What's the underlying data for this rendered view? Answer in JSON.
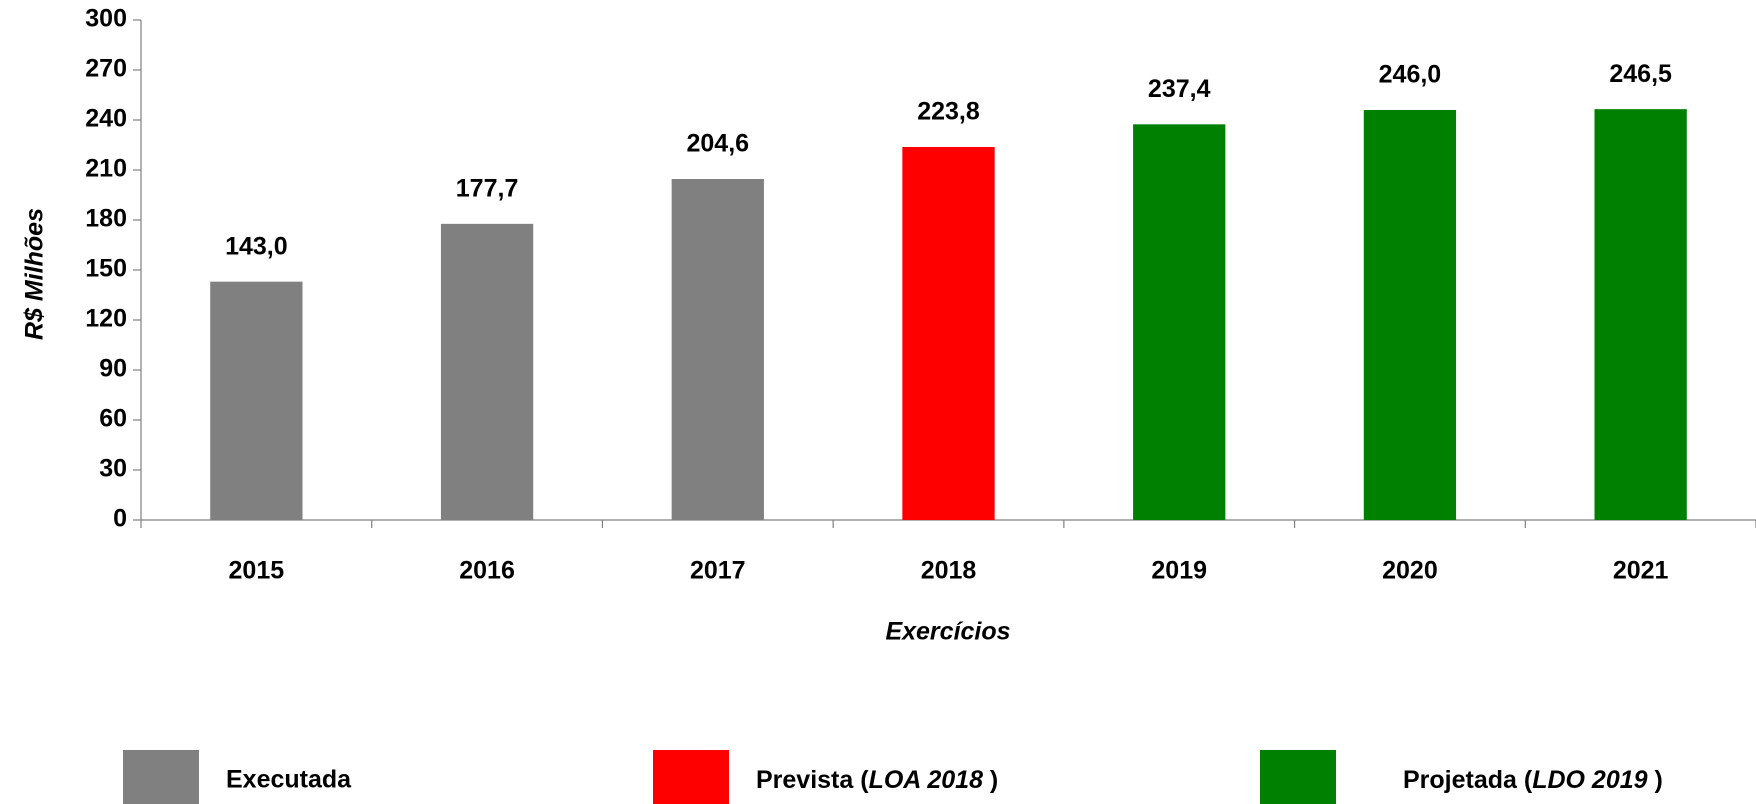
{
  "chart_data": {
    "type": "bar",
    "x_label": "Exercícios",
    "y_label": "R$ Milhões",
    "categories": [
      "2015",
      "2016",
      "2017",
      "2018",
      "2019",
      "2020",
      "2021"
    ],
    "series": [
      {
        "name": "Executada",
        "color": "#808080",
        "values": [
          143.0,
          177.7,
          204.6,
          null,
          null,
          null,
          null
        ],
        "value_labels": [
          "143,0",
          "177,7",
          "204,6",
          null,
          null,
          null,
          null
        ]
      },
      {
        "name": "Prevista (LOA 2018 )",
        "color": "#ff0000",
        "values": [
          null,
          null,
          null,
          223.8,
          null,
          null,
          null
        ],
        "value_labels": [
          null,
          null,
          null,
          "223,8",
          null,
          null,
          null
        ]
      },
      {
        "name": "Projetada (LDO 2019 )",
        "color": "#008000",
        "values": [
          null,
          null,
          null,
          null,
          237.4,
          246.0,
          246.5
        ],
        "value_labels": [
          null,
          null,
          null,
          null,
          "237,4",
          "246,0",
          "246,5"
        ]
      }
    ],
    "ylim": [
      0,
      300
    ],
    "yticks": [
      0,
      30,
      60,
      90,
      120,
      150,
      180,
      210,
      240,
      270,
      300
    ]
  }
}
